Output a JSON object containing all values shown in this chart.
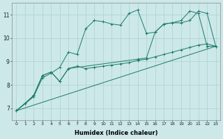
{
  "background_color": "#cce8e8",
  "grid_color": "#b0d0d0",
  "line_color": "#1a7a6a",
  "xlabel": "Humidex (Indice chaleur)",
  "ylim": [
    6.5,
    11.5
  ],
  "xlim": [
    -0.5,
    23.5
  ],
  "yticks": [
    7,
    8,
    9,
    10,
    11
  ],
  "xticks": [
    0,
    1,
    2,
    3,
    4,
    5,
    6,
    7,
    8,
    9,
    10,
    11,
    12,
    13,
    14,
    15,
    16,
    17,
    18,
    19,
    20,
    21,
    22,
    23
  ],
  "series1_x": [
    0,
    1,
    2,
    3,
    4,
    5,
    6,
    7,
    8,
    9,
    10,
    11,
    12,
    13,
    14,
    15,
    16,
    17,
    18,
    19,
    20,
    21,
    22,
    23
  ],
  "series1_y": [
    6.9,
    7.2,
    7.5,
    8.3,
    8.5,
    8.75,
    9.4,
    9.3,
    10.4,
    10.75,
    10.7,
    10.6,
    10.55,
    11.05,
    11.2,
    10.2,
    10.25,
    10.6,
    10.65,
    10.75,
    11.15,
    11.05,
    9.65,
    9.65
  ],
  "series2_x": [
    0,
    1,
    2,
    3,
    4,
    5,
    6,
    7,
    8,
    9,
    10,
    11,
    12,
    13,
    14,
    15,
    16,
    17,
    18,
    19,
    20,
    21,
    22,
    23
  ],
  "series2_y": [
    6.9,
    7.2,
    7.55,
    8.4,
    8.55,
    8.15,
    8.7,
    8.8,
    8.7,
    8.75,
    8.8,
    8.85,
    8.9,
    8.95,
    9.05,
    9.1,
    9.2,
    9.3,
    9.4,
    9.5,
    9.6,
    9.7,
    9.75,
    9.65
  ],
  "series3_x": [
    0,
    2,
    3,
    4,
    5,
    6,
    14,
    15,
    16,
    17,
    18,
    19,
    20,
    21,
    22,
    23
  ],
  "series3_y": [
    6.9,
    7.55,
    8.4,
    8.55,
    8.15,
    8.7,
    9.1,
    9.15,
    10.25,
    10.6,
    10.65,
    10.65,
    10.75,
    11.15,
    11.05,
    9.65
  ],
  "series4_x": [
    0,
    23
  ],
  "series4_y": [
    6.9,
    9.65
  ]
}
